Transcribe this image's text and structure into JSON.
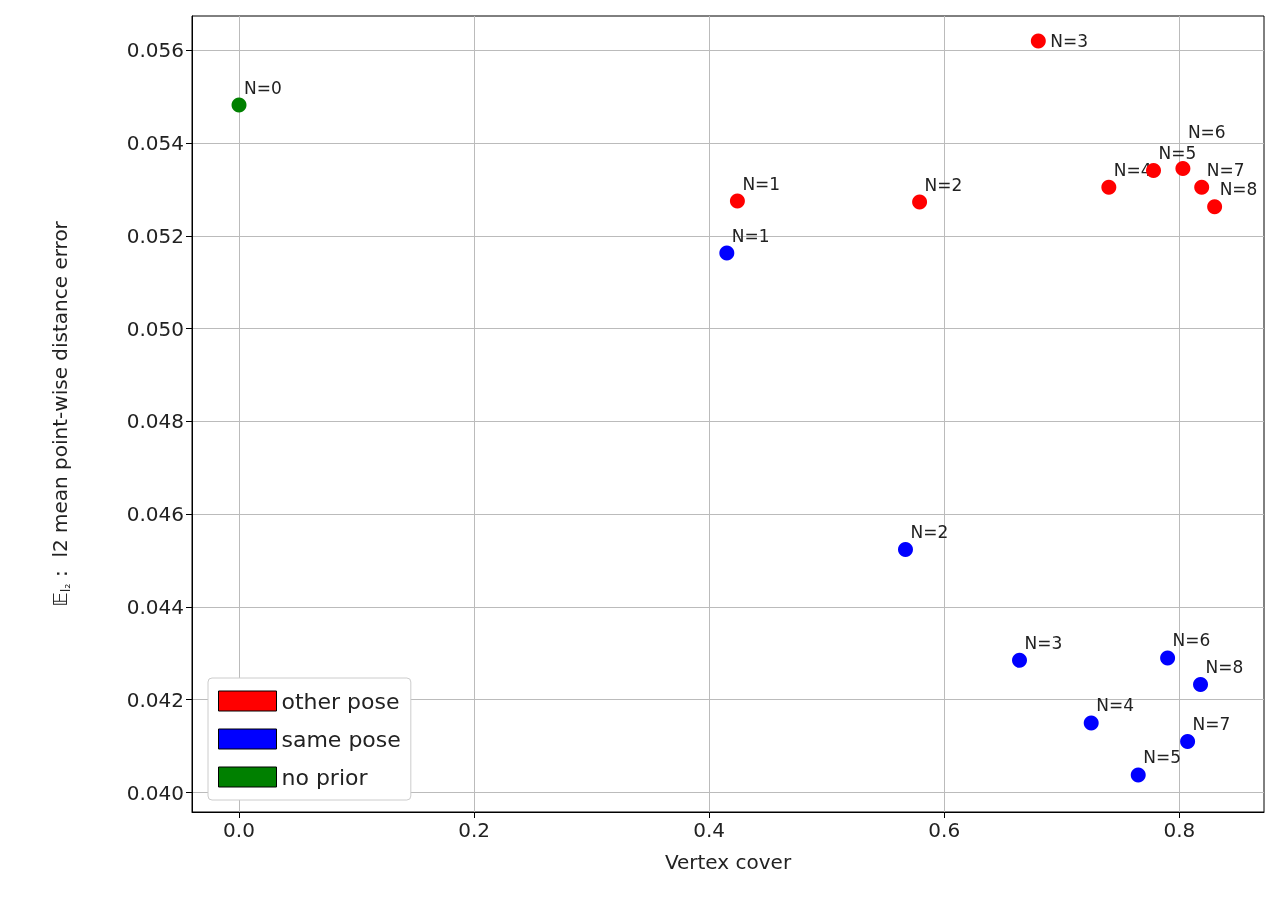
{
  "chart_data": {
    "type": "scatter",
    "xlabel": "Vertex cover",
    "ylabel": "𝔼$_{l₂}$ :  l2 mean point-wise distance error",
    "xlim": [
      -0.04,
      0.872
    ],
    "xticks": [
      {
        "value": 0,
        "label": "0.0"
      },
      0.2,
      0.4,
      0.6,
      0.8
    ],
    "ylim": [
      0.03958,
      0.05674
    ],
    "yticks": [
      {
        "value": 0.04,
        "label": "0.040"
      },
      0.042,
      0.044,
      0.046,
      0.048,
      {
        "value": 0.05,
        "label": "0.050"
      },
      0.052,
      0.054,
      0.056
    ],
    "grid": true,
    "legend": "bottom left",
    "marker": "circle",
    "series": [
      {
        "name": "other pose",
        "color": "#ff0000",
        "x": [
          0.424,
          0.579,
          0.68,
          0.74,
          0.778,
          0.803,
          0.819,
          0.83
        ],
        "values": [
          0.05275,
          0.05273,
          0.0562,
          0.05305,
          0.05341,
          0.05345,
          0.05305,
          0.05263
        ]
      },
      {
        "name": "same pose",
        "color": "#0000ff",
        "x": [
          0.415,
          0.567,
          0.664,
          0.725,
          0.765,
          0.79,
          0.807,
          0.818
        ],
        "values": [
          0.05163,
          0.04524,
          0.04285,
          0.0415,
          0.04038,
          0.0429,
          0.0411,
          0.04233
        ]
      },
      {
        "name": "no prior",
        "color": "#008000",
        "x": [
          0.0
        ],
        "values": [
          0.05482
        ]
      }
    ],
    "annotations": [
      {
        "text": "N=1",
        "x": 0.424,
        "y": 0.05275
      },
      {
        "text": "N=2",
        "x": 0.579,
        "y": 0.05273
      },
      {
        "text": "N=3",
        "x": 0.68,
        "y": 0.0562
      },
      {
        "text": "N=4",
        "x": 0.74,
        "y": 0.05305
      },
      {
        "text": "N=5",
        "x": 0.778,
        "y": 0.05341
      },
      {
        "text": "N=6",
        "x": 0.803,
        "y": 0.05345
      },
      {
        "text": "N=7",
        "x": 0.819,
        "y": 0.05305
      },
      {
        "text": "N=8",
        "x": 0.83,
        "y": 0.05263
      },
      {
        "text": "N=1",
        "x": 0.415,
        "y": 0.05163
      },
      {
        "text": "N=2",
        "x": 0.567,
        "y": 0.04524
      },
      {
        "text": "N=3",
        "x": 0.664,
        "y": 0.04285
      },
      {
        "text": "N=4",
        "x": 0.725,
        "y": 0.0415
      },
      {
        "text": "N=5",
        "x": 0.765,
        "y": 0.04038
      },
      {
        "text": "N=6",
        "x": 0.79,
        "y": 0.0429
      },
      {
        "text": "N=7",
        "x": 0.807,
        "y": 0.0411
      },
      {
        "text": "N=8",
        "x": 0.818,
        "y": 0.04233
      },
      {
        "text": "N=0",
        "x": 0.0,
        "y": 0.05482
      }
    ]
  }
}
